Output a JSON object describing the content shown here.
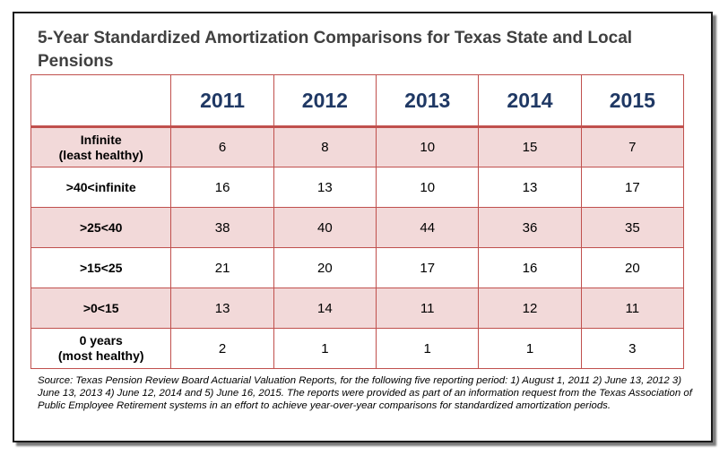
{
  "chart_data": {
    "type": "table",
    "title": "5-Year Standardized Amortization Comparisons for Texas State and Local Pensions",
    "columns": [
      "2011",
      "2012",
      "2013",
      "2014",
      "2015"
    ],
    "rows": [
      {
        "label": "Infinite\n(least healthy)",
        "values": [
          "6",
          "8",
          "10",
          "15",
          "7"
        ]
      },
      {
        "label": ">40<infinite",
        "values": [
          "16",
          "13",
          "10",
          "13",
          "17"
        ]
      },
      {
        "label": ">25<40",
        "values": [
          "38",
          "40",
          "44",
          "36",
          "35"
        ]
      },
      {
        "label": ">15<25",
        "values": [
          "21",
          "20",
          "17",
          "16",
          "20"
        ]
      },
      {
        "label": ">0<15",
        "values": [
          "13",
          "14",
          "11",
          "12",
          "11"
        ]
      },
      {
        "label": "0 years\n(most healthy)",
        "values": [
          "2",
          "1",
          "1",
          "1",
          "3"
        ]
      }
    ],
    "source": "Source: Texas Pension Review Board Actuarial Valuation Reports, for the following five reporting period: 1) August 1, 2011 2) June 13, 2012 3) June 13, 2013 4) June 12, 2014 and 5) June 16, 2015. The reports were provided as part of an information request from the Texas Association of Public Employee Retirement systems in an effort to achieve year-over-year comparisons for standardized amortization periods."
  },
  "colors": {
    "border": "#c0504d",
    "band_fill": "#f2d9d9",
    "header_text": "#1f3864",
    "title_text": "#404040"
  }
}
